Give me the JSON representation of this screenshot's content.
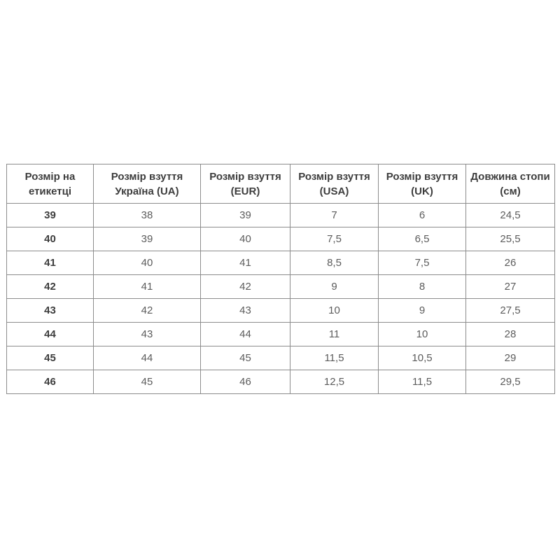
{
  "chart_data": {
    "type": "table",
    "columns": [
      "Розмір на етикетці",
      "Розмір взуття Україна (UA)",
      "Розмір взуття (EUR)",
      "Розмір взуття (USA)",
      "Розмір взуття (UK)",
      "Довжина стопи (см)"
    ],
    "rows": [
      [
        "39",
        "38",
        "39",
        "7",
        "6",
        "24,5"
      ],
      [
        "40",
        "39",
        "40",
        "7,5",
        "6,5",
        "25,5"
      ],
      [
        "41",
        "40",
        "41",
        "8,5",
        "7,5",
        "26"
      ],
      [
        "42",
        "41",
        "42",
        "9",
        "8",
        "27"
      ],
      [
        "43",
        "42",
        "43",
        "10",
        "9",
        "27,5"
      ],
      [
        "44",
        "43",
        "44",
        "11",
        "10",
        "28"
      ],
      [
        "45",
        "44",
        "45",
        "11,5",
        "10,5",
        "29"
      ],
      [
        "46",
        "45",
        "46",
        "12,5",
        "11,5",
        "29,5"
      ]
    ]
  },
  "colors": {
    "border": "#8c8c8c",
    "header_text": "#3d3d3d",
    "cell_text": "#5c5c5c",
    "background": "#ffffff"
  }
}
